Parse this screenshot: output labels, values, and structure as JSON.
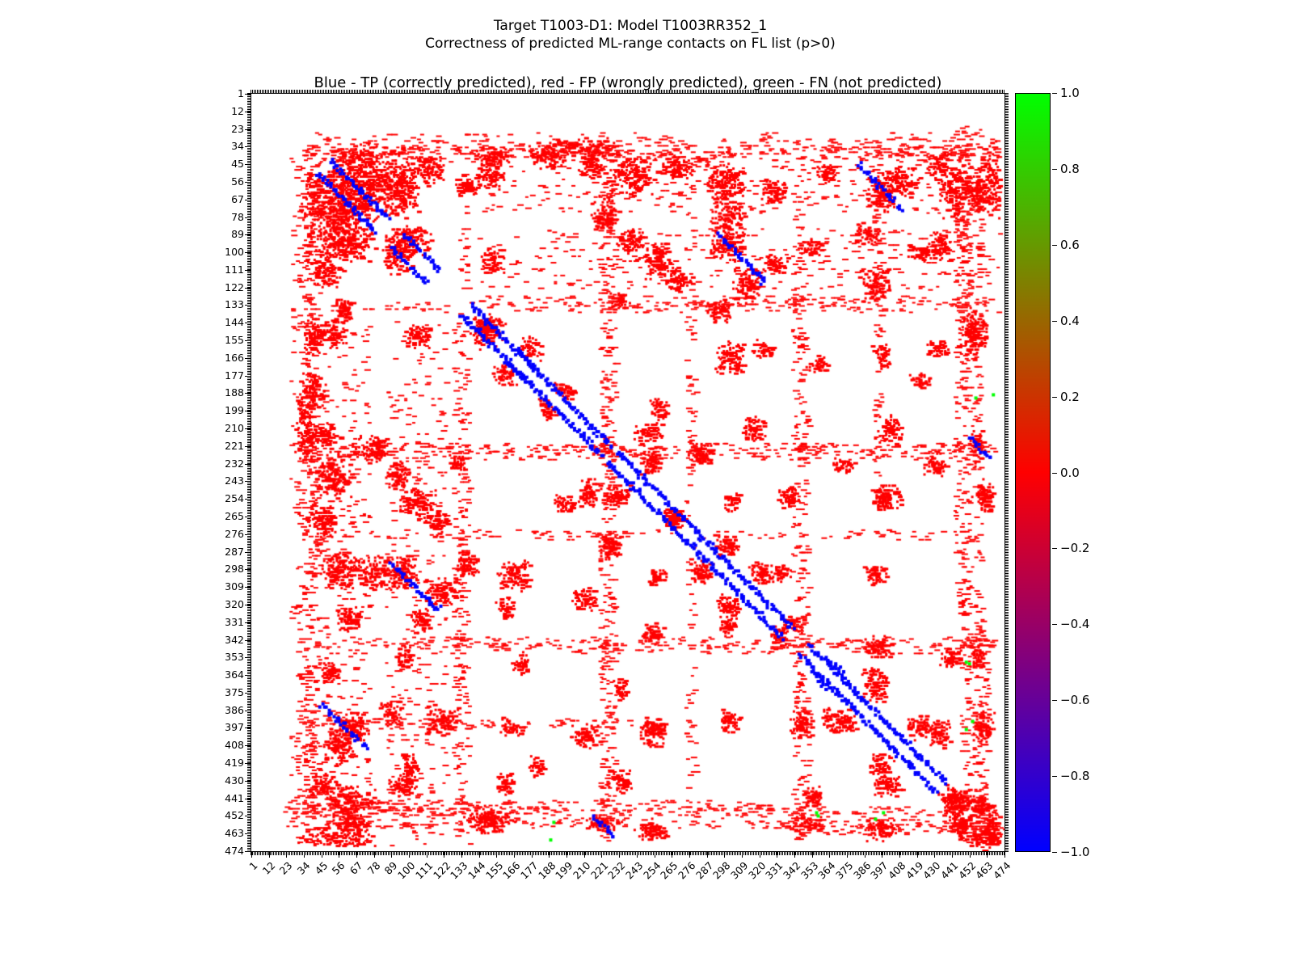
{
  "figure": {
    "suptitle_line1": "Target T1003-D1: Model T1003RR352_1",
    "suptitle_line2": "Correctness of predicted ML-range contacts on FL list (p>0)",
    "axes_title": "Blue - TP (correctly predicted), red - FP (wrongly predicted), green - FN (not predicted)"
  },
  "chart_data": {
    "type": "scatter",
    "title": "Blue - TP (correctly predicted), red - FP (wrongly predicted), green - FN (not predicted)",
    "xlabel": "",
    "ylabel": "",
    "x_range": [
      1,
      474
    ],
    "y_range": [
      1,
      474
    ],
    "y_axis_inverted": true,
    "grid": false,
    "tick_labels": [
      1,
      12,
      23,
      34,
      45,
      56,
      67,
      78,
      89,
      100,
      111,
      122,
      133,
      144,
      155,
      166,
      177,
      188,
      199,
      210,
      221,
      232,
      243,
      254,
      265,
      276,
      287,
      298,
      309,
      320,
      331,
      342,
      353,
      364,
      375,
      386,
      397,
      408,
      419,
      430,
      441,
      452,
      463,
      474
    ],
    "classes": [
      {
        "name": "TP",
        "meaning": "correctly predicted",
        "color": "#0000ff",
        "value": -1
      },
      {
        "name": "FP",
        "meaning": "wrongly predicted",
        "color": "#ff0000",
        "value": 0
      },
      {
        "name": "FN",
        "meaning": "not predicted",
        "color": "#00ff00",
        "value": 1
      }
    ],
    "colorbar": {
      "min": -1.0,
      "max": 1.0,
      "tick_labels": [
        "1.0",
        "0.8",
        "0.6",
        "0.4",
        "0.2",
        "0.0",
        "−0.2",
        "−0.4",
        "−0.6",
        "−0.8",
        "−1.0"
      ],
      "gradient": [
        "#0000ff",
        "#ff0000",
        "#00ff00"
      ]
    },
    "symmetric": true,
    "seed": 1337,
    "fp_clusters": [
      [
        75,
        55,
        28,
        26,
        500
      ],
      [
        112,
        48,
        12,
        10,
        110
      ],
      [
        60,
        95,
        18,
        12,
        160
      ],
      [
        100,
        92,
        14,
        10,
        120
      ],
      [
        135,
        58,
        8,
        8,
        70
      ],
      [
        152,
        40,
        12,
        7,
        80
      ],
      [
        186,
        40,
        12,
        8,
        90
      ],
      [
        214,
        46,
        9,
        8,
        70
      ],
      [
        240,
        52,
        16,
        13,
        160
      ],
      [
        268,
        46,
        11,
        9,
        90
      ],
      [
        298,
        55,
        14,
        12,
        140
      ],
      [
        328,
        62,
        9,
        8,
        70
      ],
      [
        362,
        50,
        8,
        6,
        50
      ],
      [
        408,
        55,
        14,
        11,
        110
      ],
      [
        443,
        62,
        12,
        20,
        150
      ],
      [
        464,
        55,
        7,
        26,
        120
      ],
      [
        238,
        92,
        10,
        8,
        80
      ],
      [
        300,
        96,
        12,
        10,
        110
      ],
      [
        330,
        106,
        9,
        7,
        60
      ],
      [
        268,
        116,
        11,
        8,
        70
      ],
      [
        294,
        136,
        10,
        8,
        70
      ],
      [
        232,
        130,
        7,
        6,
        45
      ],
      [
        150,
        146,
        11,
        8,
        80
      ],
      [
        104,
        152,
        10,
        8,
        70
      ],
      [
        52,
        150,
        10,
        10,
        80
      ],
      [
        34,
        205,
        7,
        28,
        110
      ],
      [
        75,
        222,
        12,
        10,
        90
      ],
      [
        104,
        256,
        12,
        12,
        110
      ],
      [
        76,
        300,
        15,
        12,
        120
      ],
      [
        120,
        312,
        12,
        10,
        90
      ],
      [
        160,
        176,
        8,
        8,
        55
      ],
      [
        198,
        186,
        8,
        6,
        45
      ],
      [
        250,
        212,
        10,
        8,
        70
      ],
      [
        284,
        226,
        10,
        8,
        70
      ],
      [
        230,
        252,
        10,
        8,
        70
      ],
      [
        264,
        266,
        8,
        6,
        45
      ],
      [
        196,
        256,
        8,
        6,
        45
      ],
      [
        166,
        302,
        12,
        10,
        90
      ],
      [
        210,
        316,
        10,
        8,
        70
      ],
      [
        256,
        302,
        8,
        6,
        45
      ],
      [
        300,
        282,
        10,
        8,
        70
      ],
      [
        338,
        252,
        8,
        8,
        55
      ],
      [
        372,
        232,
        8,
        6,
        45
      ],
      [
        400,
        252,
        10,
        8,
        70
      ],
      [
        430,
        232,
        8,
        8,
        55
      ],
      [
        461,
        252,
        8,
        12,
        80
      ],
      [
        340,
        332,
        8,
        6,
        45
      ],
      [
        394,
        346,
        10,
        8,
        70
      ],
      [
        440,
        352,
        8,
        8,
        55
      ],
      [
        370,
        392,
        12,
        10,
        90
      ],
      [
        420,
        396,
        10,
        8,
        70
      ],
      [
        460,
        396,
        8,
        10,
        70
      ],
      [
        400,
        432,
        10,
        8,
        70
      ],
      [
        444,
        442,
        10,
        10,
        90
      ],
      [
        300,
        392,
        8,
        8,
        55
      ],
      [
        254,
        396,
        8,
        6,
        45
      ],
      [
        210,
        402,
        10,
        8,
        70
      ],
      [
        164,
        396,
        8,
        6,
        45
      ],
      [
        120,
        392,
        12,
        10,
        90
      ],
      [
        64,
        396,
        12,
        10,
        90
      ],
      [
        46,
        432,
        10,
        8,
        70
      ],
      [
        96,
        432,
        10,
        8,
        70
      ],
      [
        150,
        452,
        18,
        7,
        90
      ],
      [
        220,
        456,
        14,
        5,
        60
      ],
      [
        62,
        456,
        14,
        5,
        60
      ],
      [
        350,
        456,
        9,
        5,
        45
      ],
      [
        465,
        466,
        6,
        5,
        40
      ],
      [
        388,
        88,
        10,
        8,
        60
      ],
      [
        352,
        96,
        8,
        6,
        45
      ],
      [
        420,
        100,
        9,
        7,
        55
      ],
      [
        456,
        150,
        8,
        10,
        60
      ],
      [
        432,
        160,
        8,
        6,
        45
      ],
      [
        322,
        160,
        8,
        6,
        40
      ],
      [
        356,
        170,
        8,
        6,
        40
      ],
      [
        420,
        180,
        8,
        6,
        40
      ],
      [
        300,
        320,
        9,
        7,
        55
      ],
      [
        332,
        300,
        8,
        6,
        45
      ],
      [
        458,
        446,
        10,
        8,
        70
      ],
      [
        466,
        456,
        6,
        6,
        45
      ]
    ],
    "fp_streaks": [
      [
        36,
        30,
        470,
        260
      ],
      [
        40,
        30,
        470,
        200
      ],
      [
        28,
        40,
        470,
        80
      ],
      [
        32,
        40,
        470,
        80
      ],
      [
        48,
        140,
        470,
        70
      ],
      [
        56,
        140,
        470,
        70
      ],
      [
        64,
        140,
        470,
        70
      ],
      [
        72,
        140,
        470,
        60
      ],
      [
        88,
        140,
        470,
        60
      ],
      [
        96,
        140,
        470,
        60
      ],
      [
        104,
        140,
        470,
        60
      ],
      [
        112,
        140,
        470,
        60
      ],
      [
        120,
        140,
        470,
        50
      ],
      [
        130,
        140,
        470,
        140
      ],
      [
        134,
        40,
        470,
        120
      ],
      [
        222,
        30,
        470,
        220
      ],
      [
        226,
        60,
        460,
        150
      ],
      [
        276,
        40,
        460,
        100
      ],
      [
        343,
        30,
        470,
        180
      ],
      [
        347,
        100,
        470,
        120
      ],
      [
        394,
        30,
        240,
        90
      ],
      [
        445,
        20,
        330,
        160
      ],
      [
        449,
        20,
        470,
        200
      ],
      [
        456,
        20,
        470,
        180
      ],
      [
        460,
        330,
        474,
        80
      ]
    ],
    "tp_segments": [
      [
        138,
        132,
        226,
        220,
        120
      ],
      [
        230,
        224,
        340,
        334,
        150
      ],
      [
        350,
        344,
        436,
        430,
        120
      ],
      [
        50,
        42,
        86,
        78,
        50
      ],
      [
        294,
        88,
        322,
        118,
        40
      ],
      [
        382,
        44,
        408,
        72,
        34
      ],
      [
        96,
        88,
        118,
        110,
        26
      ],
      [
        166,
        160,
        180,
        174,
        18
      ],
      [
        452,
        216,
        464,
        228,
        14
      ],
      [
        362,
        352,
        372,
        362,
        12
      ]
    ],
    "fn_points": [
      [
        451,
        356
      ],
      [
        356,
        451
      ],
      [
        449,
        397
      ],
      [
        397,
        449
      ],
      [
        453,
        392
      ],
      [
        392,
        453
      ],
      [
        355,
        449
      ],
      [
        449,
        355
      ],
      [
        190,
        455
      ],
      [
        455,
        190
      ],
      [
        466,
        188
      ],
      [
        188,
        466
      ]
    ]
  }
}
